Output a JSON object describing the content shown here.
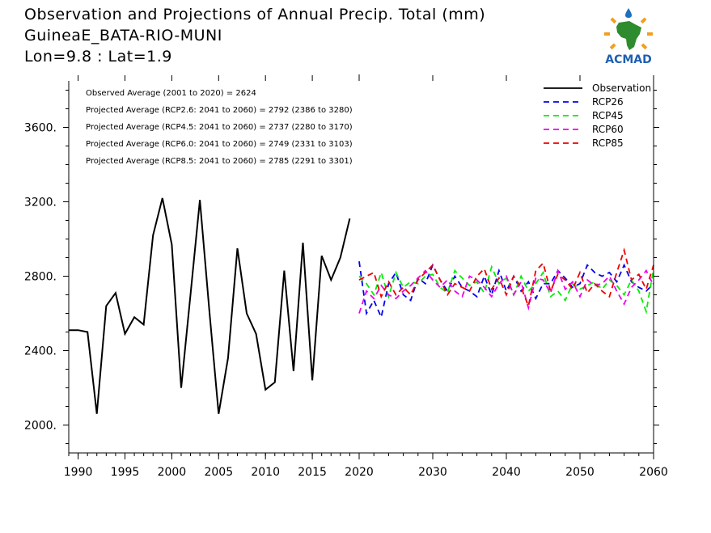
{
  "title_lines": [
    "Observation and Projections of Annual Precip. Total (mm)",
    "GuineaE_BATA-RIO-MUNI",
    "Lon=9.8 : Lat=1.9"
  ],
  "logo": {
    "text": "ACMAD",
    "icon": "acmad-africa-logo-icon"
  },
  "stats": [
    "Observed Average (2001 to 2020) = 2624",
    "Projected Average (RCP2.6: 2041 to 2060) = 2792 (2386 to 3280)",
    "Projected Average (RCP4.5: 2041 to 2060) = 2737 (2280 to 3170)",
    "Projected Average (RCP6.0: 2041 to 2060) = 2749 (2331 to 3103)",
    "Projected Average (RCP8.5: 2041 to 2060) = 2785 (2291 to 3301)"
  ],
  "colors": {
    "observation": "#000000",
    "rcp26": "#0000ee",
    "rcp45": "#00ee00",
    "rcp60": "#ee00ee",
    "rcp85": "#ee0000"
  },
  "chart_data": {
    "type": "line",
    "title": "Observation and Projections of Annual Precip. Total (mm)",
    "xlabel": "",
    "ylabel": "",
    "xlim": [
      1989,
      2060
    ],
    "ylim": [
      1850,
      3850
    ],
    "grid": false,
    "legend_position": "top-right",
    "x_ticks_left": [
      1990,
      1995,
      2000,
      2005,
      2010,
      2015,
      2020
    ],
    "x_ticks_right": [
      2030,
      2040,
      2050,
      2060
    ],
    "x_tick_labels": [
      "1990",
      "1995",
      "2000",
      "2005",
      "2010",
      "2015",
      "2020",
      "2030",
      "2040",
      "2050",
      "2060"
    ],
    "y_ticks": [
      2000,
      2400,
      2800,
      3200,
      3600
    ],
    "y_tick_labels": [
      "2000.",
      "2400.",
      "2800.",
      "3200.",
      "3600."
    ],
    "series": [
      {
        "name": "Observation",
        "x": [
          1989,
          1990,
          1991,
          1992,
          1993,
          1994,
          1995,
          1996,
          1997,
          1998,
          1999,
          2000,
          2001,
          2002,
          2003,
          2004,
          2005,
          2006,
          2007,
          2008,
          2009,
          2010,
          2011,
          2012,
          2013,
          2014,
          2015,
          2016,
          2017,
          2018,
          2019,
          2020
        ],
        "values": [
          2510,
          2510,
          2500,
          2060,
          2640,
          2710,
          2490,
          2580,
          2540,
          3020,
          3220,
          2970,
          2200,
          2700,
          3210,
          2620,
          2060,
          2360,
          2950,
          2600,
          2490,
          2190,
          2230,
          2830,
          2290,
          2980,
          2240,
          2910,
          2780,
          2900,
          3110,
          null
        ]
      },
      {
        "name": "RCP26",
        "x": [
          2020,
          2021,
          2022,
          2023,
          2024,
          2025,
          2026,
          2027,
          2028,
          2029,
          2030,
          2031,
          2032,
          2033,
          2034,
          2035,
          2036,
          2037,
          2038,
          2039,
          2040,
          2041,
          2042,
          2043,
          2044,
          2045,
          2046,
          2047,
          2048,
          2049,
          2050,
          2051,
          2052,
          2053,
          2054,
          2055,
          2056,
          2057,
          2058,
          2059,
          2060
        ],
        "values": [
          2880,
          2600,
          2670,
          2580,
          2760,
          2820,
          2700,
          2670,
          2790,
          2760,
          2860,
          2780,
          2720,
          2800,
          2740,
          2720,
          2690,
          2800,
          2700,
          2830,
          2720,
          2800,
          2720,
          2770,
          2680,
          2760,
          2760,
          2830,
          2790,
          2740,
          2760,
          2860,
          2820,
          2800,
          2820,
          2770,
          2860,
          2770,
          2740,
          2720,
          2760
        ]
      },
      {
        "name": "RCP45",
        "x": [
          2020,
          2021,
          2022,
          2023,
          2024,
          2025,
          2026,
          2027,
          2028,
          2029,
          2030,
          2031,
          2032,
          2033,
          2034,
          2035,
          2036,
          2037,
          2038,
          2039,
          2040,
          2041,
          2042,
          2043,
          2044,
          2045,
          2046,
          2047,
          2048,
          2049,
          2050,
          2051,
          2052,
          2053,
          2054,
          2055,
          2056,
          2057,
          2058,
          2059,
          2060
        ],
        "values": [
          2800,
          2760,
          2700,
          2820,
          2690,
          2820,
          2740,
          2770,
          2760,
          2800,
          2810,
          2740,
          2710,
          2830,
          2790,
          2750,
          2770,
          2710,
          2850,
          2760,
          2790,
          2700,
          2800,
          2720,
          2760,
          2820,
          2690,
          2720,
          2670,
          2760,
          2730,
          2750,
          2770,
          2730,
          2780,
          2750,
          2700,
          2780,
          2720,
          2610,
          2840
        ]
      },
      {
        "name": "RCP60",
        "x": [
          2020,
          2021,
          2022,
          2023,
          2024,
          2025,
          2026,
          2027,
          2028,
          2029,
          2030,
          2031,
          2032,
          2033,
          2034,
          2035,
          2036,
          2037,
          2038,
          2039,
          2040,
          2041,
          2042,
          2043,
          2044,
          2045,
          2046,
          2047,
          2048,
          2049,
          2050,
          2051,
          2052,
          2053,
          2054,
          2055,
          2056,
          2057,
          2058,
          2059,
          2060
        ],
        "values": [
          2600,
          2720,
          2680,
          2750,
          2700,
          2680,
          2720,
          2750,
          2790,
          2830,
          2780,
          2740,
          2780,
          2720,
          2690,
          2800,
          2780,
          2740,
          2690,
          2760,
          2800,
          2700,
          2770,
          2630,
          2790,
          2780,
          2710,
          2830,
          2730,
          2770,
          2690,
          2780,
          2750,
          2760,
          2800,
          2720,
          2650,
          2740,
          2780,
          2830,
          2750
        ]
      },
      {
        "name": "RCP85",
        "x": [
          2020,
          2021,
          2022,
          2023,
          2024,
          2025,
          2026,
          2027,
          2028,
          2029,
          2030,
          2031,
          2032,
          2033,
          2034,
          2035,
          2036,
          2037,
          2038,
          2039,
          2040,
          2041,
          2042,
          2043,
          2044,
          2045,
          2046,
          2047,
          2048,
          2049,
          2050,
          2051,
          2052,
          2053,
          2054,
          2055,
          2056,
          2057,
          2058,
          2059,
          2060
        ],
        "values": [
          2780,
          2800,
          2820,
          2690,
          2770,
          2700,
          2740,
          2700,
          2780,
          2820,
          2860,
          2780,
          2700,
          2760,
          2740,
          2720,
          2800,
          2840,
          2730,
          2790,
          2700,
          2800,
          2740,
          2640,
          2830,
          2870,
          2720,
          2810,
          2780,
          2730,
          2820,
          2710,
          2760,
          2720,
          2690,
          2820,
          2940,
          2780,
          2810,
          2730,
          2860
        ]
      }
    ]
  }
}
